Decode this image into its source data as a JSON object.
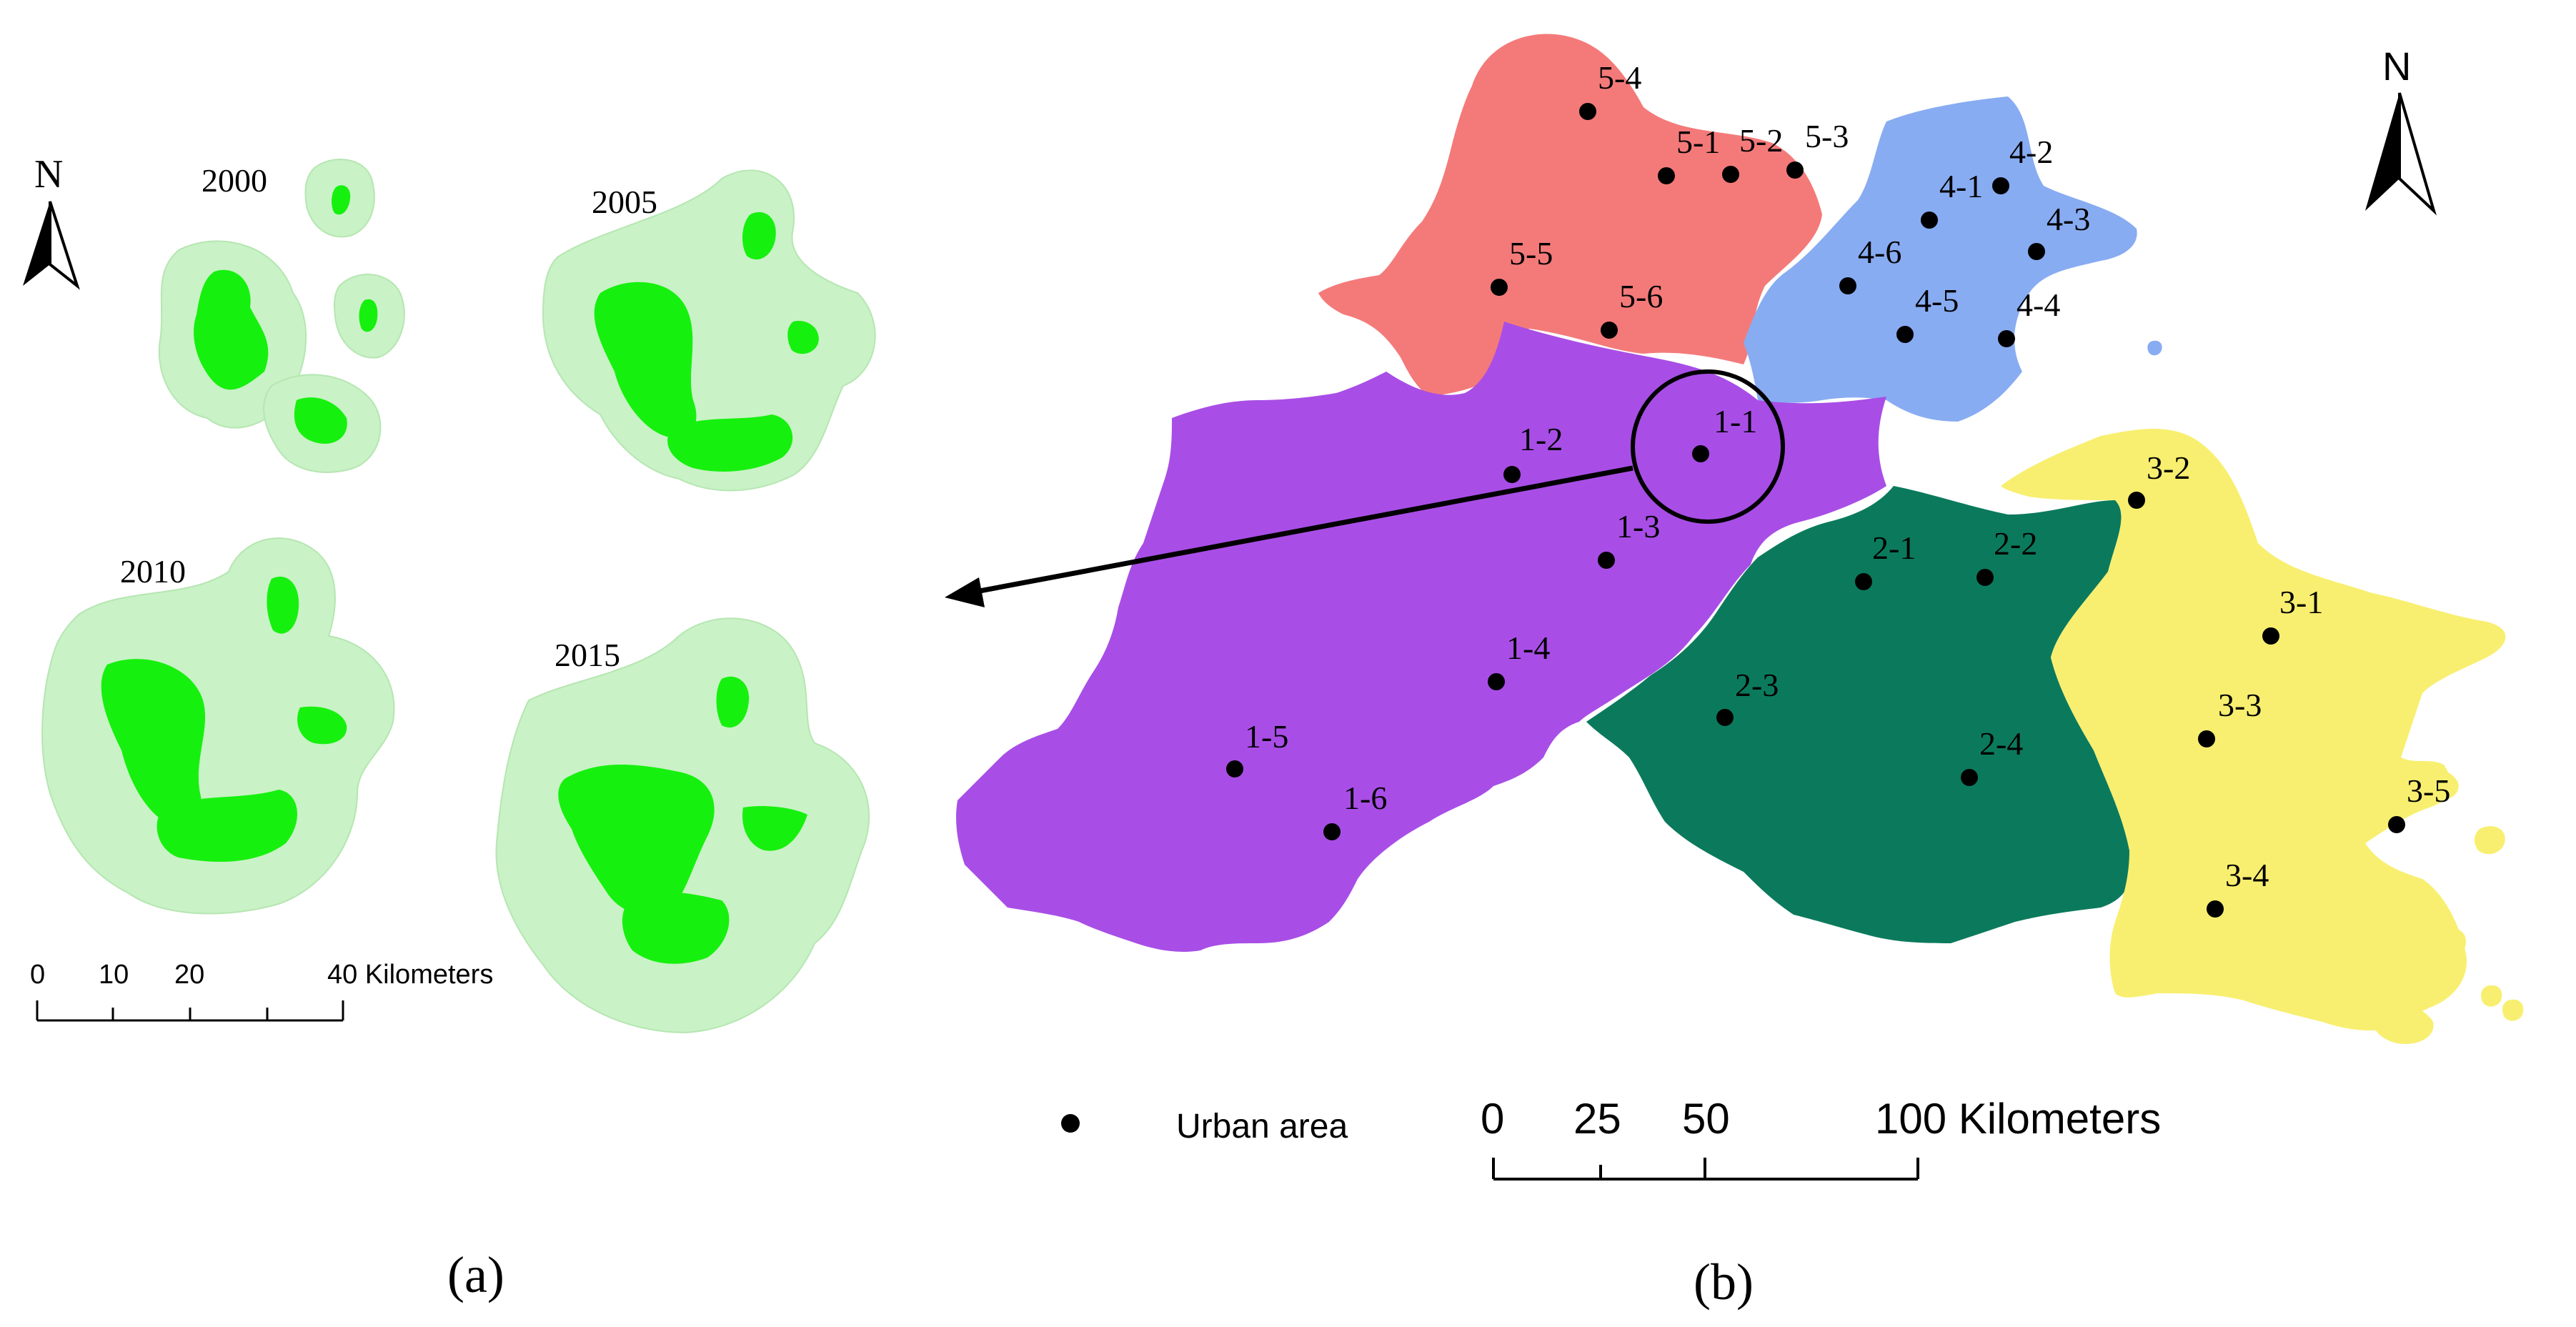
{
  "panel_a": {
    "label": "(a)",
    "north_label": "N",
    "years": [
      "2000",
      "2005",
      "2010",
      "2015"
    ],
    "scale": {
      "ticks": [
        "0",
        "10",
        "20",
        "40 Kilometers"
      ]
    }
  },
  "panel_b": {
    "label": "(b)",
    "north_label": "N",
    "legend": {
      "symbol": "dot",
      "text": "Urban area"
    },
    "scale": {
      "ticks": [
        "0",
        "25",
        "50",
        "100 Kilometers"
      ]
    },
    "regions": [
      {
        "id": "1",
        "color": "#a84ee6"
      },
      {
        "id": "2",
        "color": "#0b7a5c"
      },
      {
        "id": "3",
        "color": "#f8ef70"
      },
      {
        "id": "4",
        "color": "#88acf2"
      },
      {
        "id": "5",
        "color": "#f47a7a"
      }
    ],
    "urban_areas": [
      {
        "label": "1-1"
      },
      {
        "label": "1-2"
      },
      {
        "label": "1-3"
      },
      {
        "label": "1-4"
      },
      {
        "label": "1-5"
      },
      {
        "label": "1-6"
      },
      {
        "label": "2-1"
      },
      {
        "label": "2-2"
      },
      {
        "label": "2-3"
      },
      {
        "label": "2-4"
      },
      {
        "label": "3-1"
      },
      {
        "label": "3-2"
      },
      {
        "label": "3-3"
      },
      {
        "label": "3-4"
      },
      {
        "label": "3-5"
      },
      {
        "label": "4-1"
      },
      {
        "label": "4-2"
      },
      {
        "label": "4-3"
      },
      {
        "label": "4-4"
      },
      {
        "label": "4-5"
      },
      {
        "label": "4-6"
      },
      {
        "label": "5-1"
      },
      {
        "label": "5-2"
      },
      {
        "label": "5-3"
      },
      {
        "label": "5-4"
      },
      {
        "label": "5-5"
      },
      {
        "label": "5-6"
      }
    ]
  }
}
